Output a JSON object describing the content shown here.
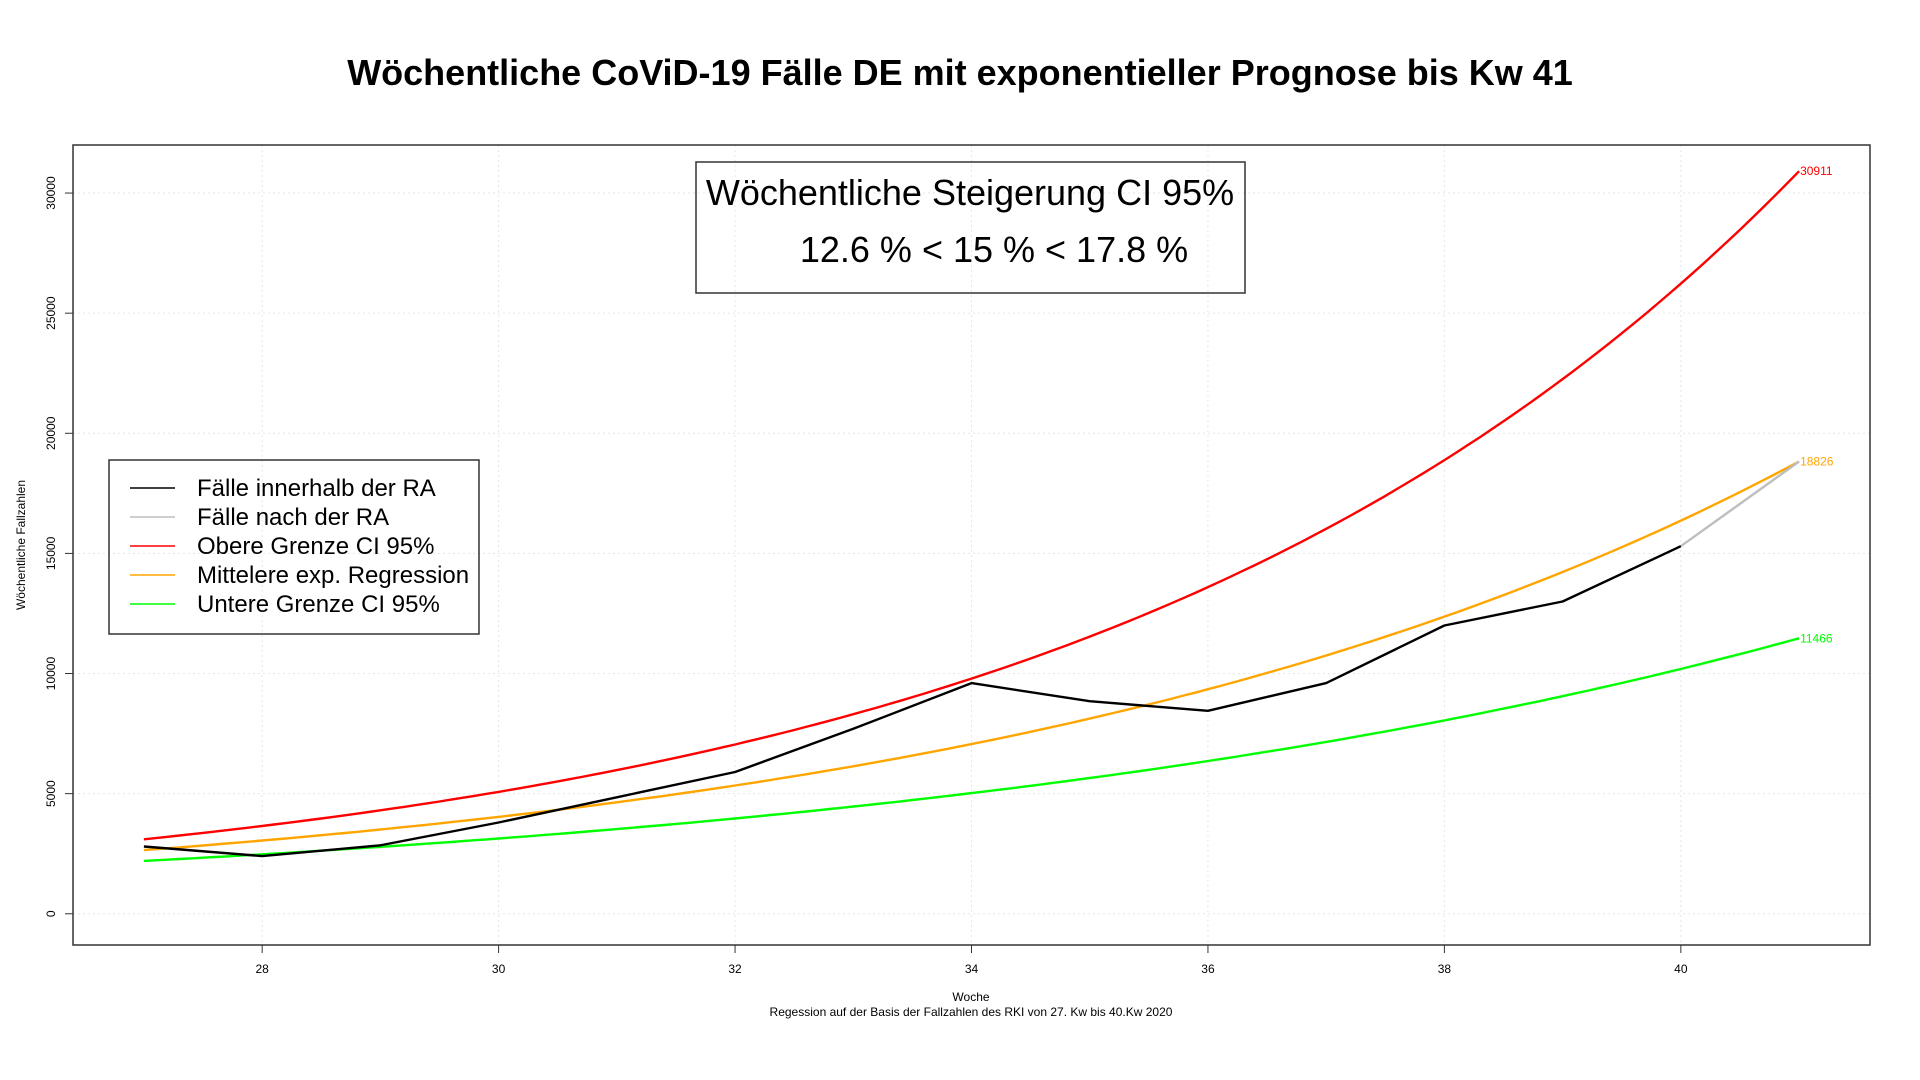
{
  "chart_data": {
    "type": "line",
    "title": "Wöchentliche CoViD-19 Fälle DE mit exponentieller Prognose bis Kw 41",
    "xlabel": "Woche",
    "subtitle": "Regession auf der Basis der Fallzahlen des RKI von 27. Kw bis 40.Kw 2020",
    "ylabel": "Wöchentliche Fallzahlen",
    "xlim": [
      26.4,
      41.6
    ],
    "ylim": [
      -1300,
      32000
    ],
    "xticks": [
      28,
      30,
      32,
      34,
      36,
      38,
      40
    ],
    "yticks": [
      0,
      5000,
      10000,
      15000,
      20000,
      25000,
      30000
    ],
    "grid": true,
    "legend_position": "left",
    "annotation": {
      "line1": "Wöchentliche Steigerung CI 95%",
      "line2": "12.6 % < 15 % < 17.8 %"
    },
    "series": [
      {
        "name": "Fälle innerhalb der RA",
        "color": "#000000",
        "x": [
          27,
          28,
          29,
          30,
          31,
          32,
          33,
          34,
          35,
          36,
          37,
          38,
          39,
          40
        ],
        "y": [
          2800,
          2400,
          2850,
          3800,
          4850,
          5900,
          7700,
          9600,
          8850,
          8450,
          9600,
          12000,
          13000,
          15300
        ]
      },
      {
        "name": "Fälle nach der RA",
        "color": "#bebebe",
        "x": [
          40,
          41
        ],
        "y": [
          15300,
          18826
        ]
      },
      {
        "name": "Obere Grenze CI 95%",
        "color": "#ff0000",
        "curve": "exponential",
        "x_range": [
          27,
          41
        ],
        "y_start": 3100,
        "y_end": 30911,
        "end_label": "30911"
      },
      {
        "name": "Mittelere exp. Regression",
        "color": "#ffa500",
        "curve": "exponential",
        "x_range": [
          27,
          41
        ],
        "y_start": 2650,
        "y_end": 18826,
        "end_label": "18826"
      },
      {
        "name": "Untere Grenze CI  95%",
        "color": "#00ff00",
        "curve": "exponential",
        "x_range": [
          27,
          41
        ],
        "y_start": 2200,
        "y_end": 11466,
        "end_label": "11466"
      }
    ]
  }
}
